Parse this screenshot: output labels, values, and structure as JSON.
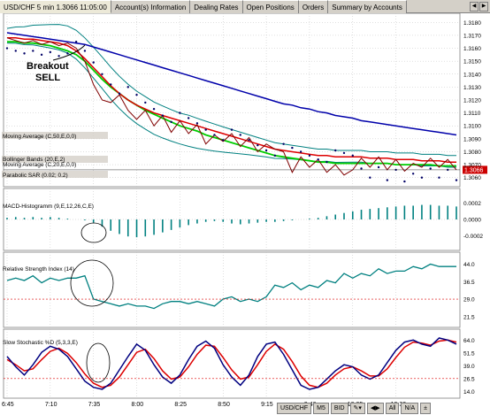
{
  "tabs": [
    {
      "label": "USD/CHF 5 min 1.3066 11:05:00",
      "active": true
    },
    {
      "label": "Account(s) Information",
      "active": false
    },
    {
      "label": "Dealing Rates",
      "active": false
    },
    {
      "label": "Open Positions",
      "active": false
    },
    {
      "label": "Orders",
      "active": false
    },
    {
      "label": "Summary by Accounts",
      "active": false
    }
  ],
  "annotation": {
    "line1": "Breakout",
    "line2": "SELL"
  },
  "price_panel": {
    "labels": [
      "Moving Average (C,50,E,0,0)",
      "Bollinger Bands (20,E,2)",
      "Moving Average (C,20,E,0,0)",
      "Parabolic SAR (0.02; 0.2)"
    ],
    "current_price": "1.3066",
    "yticks": [
      "1.3180",
      "1.3170",
      "1.3160",
      "1.3150",
      "1.3140",
      "1.3130",
      "1.3120",
      "1.3110",
      "1.3100",
      "1.3090",
      "1.3080",
      "1.3070",
      "1.3060"
    ]
  },
  "macd_panel": {
    "label": "MACD-Histogramm (9,E,12,26,C,E)",
    "yticks": [
      "0.0002",
      "0.0000",
      "-0.0002"
    ]
  },
  "rsi_panel": {
    "label": "Relative Strength Index (14)",
    "yticks": [
      "44.0",
      "36.5",
      "29.0",
      "21.5"
    ]
  },
  "stoch_panel": {
    "label": "Slow Stochastic %D (5,3,3,E)",
    "yticks": [
      "64.0",
      "51.5",
      "39.0",
      "26.5",
      "14.0"
    ]
  },
  "xticks": [
    "6:45",
    "7:10",
    "7:35",
    "8:00",
    "8:25",
    "8:50",
    "9:15",
    "9:40",
    "10:05",
    "10:30"
  ],
  "status": [
    "USD/CHF",
    "M5",
    "BID",
    "All",
    "N/A"
  ],
  "colors": {
    "ma50": "#0000aa",
    "ma20": "#00cc00",
    "bollinger": "#008080",
    "price": "#800000",
    "ema_red": "#dd0000",
    "sar": "#000066",
    "macd": "#008080",
    "rsi": "#008080",
    "stoch_k": "#000080",
    "stoch_d": "#dd0000"
  },
  "chart_data": [
    {
      "type": "line",
      "title": "USD/CHF 5 min 1.3066 11:05:00",
      "ylim": [
        1.3055,
        1.3185
      ],
      "x": [
        "6:45",
        "6:50",
        "6:55",
        "7:00",
        "7:05",
        "7:10",
        "7:15",
        "7:20",
        "7:25",
        "7:30",
        "7:35",
        "7:40",
        "7:45",
        "7:50",
        "7:55",
        "8:00",
        "8:05",
        "8:10",
        "8:15",
        "8:20",
        "8:25",
        "8:30",
        "8:35",
        "8:40",
        "8:45",
        "8:50",
        "8:55",
        "9:00",
        "9:05",
        "9:10",
        "9:15",
        "9:20",
        "9:25",
        "9:30",
        "9:35",
        "9:40",
        "9:45",
        "9:50",
        "9:55",
        "10:00",
        "10:05",
        "10:10",
        "10:15",
        "10:20",
        "10:25",
        "10:30",
        "10:35",
        "10:40",
        "10:45",
        "10:50",
        "10:55",
        "11:00",
        "11:05"
      ],
      "series": [
        {
          "name": "Moving Average (C,50,E,0,0)",
          "values": [
            1.3172,
            1.3171,
            1.317,
            1.3169,
            1.3168,
            1.3167,
            1.3166,
            1.3165,
            1.3164,
            1.3163,
            1.3161,
            1.3159,
            1.3157,
            1.3155,
            1.3153,
            1.3151,
            1.3149,
            1.3147,
            1.3145,
            1.3143,
            1.3141,
            1.3139,
            1.3137,
            1.3135,
            1.3133,
            1.3131,
            1.3129,
            1.3127,
            1.3125,
            1.3123,
            1.3121,
            1.3119,
            1.3117,
            1.3116,
            1.3114,
            1.3113,
            1.3111,
            1.311,
            1.3108,
            1.3107,
            1.3106,
            1.3104,
            1.3103,
            1.3102,
            1.3101,
            1.31,
            1.3099,
            1.3098,
            1.3097,
            1.3096,
            1.3095,
            1.3094,
            1.3093
          ]
        },
        {
          "name": "Bollinger Bands (20,E,2)",
          "values": [
            1.3168,
            1.3168,
            1.3167,
            1.3167,
            1.3166,
            1.3165,
            1.3164,
            1.3162,
            1.3158,
            1.3152,
            1.3145,
            1.3138,
            1.3131,
            1.3125,
            1.312,
            1.3116,
            1.3113,
            1.311,
            1.3108,
            1.3106,
            1.3104,
            1.3102,
            1.31,
            1.3098,
            1.3096,
            1.3094,
            1.3092,
            1.309,
            1.3088,
            1.3086,
            1.3084,
            1.3082,
            1.3081,
            1.308,
            1.3079,
            1.3078,
            1.3077,
            1.3077,
            1.3076,
            1.3076,
            1.3076,
            1.3076,
            1.3075,
            1.3075,
            1.3075,
            1.3074,
            1.3074,
            1.3074,
            1.3073,
            1.3073,
            1.3073,
            1.3072,
            1.3072
          ]
        },
        {
          "name": "Moving Average (C,20,E,0,0)",
          "values": [
            1.3165,
            1.3165,
            1.3164,
            1.3164,
            1.3163,
            1.3162,
            1.316,
            1.3158,
            1.3155,
            1.315,
            1.3143,
            1.3136,
            1.313,
            1.3125,
            1.312,
            1.3116,
            1.3112,
            1.3109,
            1.3106,
            1.3103,
            1.31,
            1.3098,
            1.3096,
            1.3093,
            1.3091,
            1.3089,
            1.3087,
            1.3085,
            1.3083,
            1.3081,
            1.3079,
            1.3077,
            1.3076,
            1.3075,
            1.3074,
            1.3073,
            1.3072,
            1.3072,
            1.3071,
            1.3071,
            1.3071,
            1.3071,
            1.3071,
            1.3071,
            1.3071,
            1.307,
            1.307,
            1.307,
            1.307,
            1.307,
            1.3069,
            1.3069,
            1.3069
          ]
        },
        {
          "name": "Price",
          "values": [
            1.3168,
            1.3166,
            1.3164,
            1.3166,
            1.3163,
            1.3165,
            1.3162,
            1.3164,
            1.316,
            1.315,
            1.3132,
            1.312,
            1.3118,
            1.3124,
            1.3112,
            1.3105,
            1.3112,
            1.31,
            1.3108,
            1.3095,
            1.3104,
            1.3094,
            1.3101,
            1.3086,
            1.3093,
            1.3088,
            1.3094,
            1.3084,
            1.3091,
            1.308,
            1.3086,
            1.3082,
            1.308,
            1.3064,
            1.3076,
            1.3068,
            1.3074,
            1.3064,
            1.307,
            1.3062,
            1.3066,
            1.3075,
            1.3068,
            1.3076,
            1.3066,
            1.3074,
            1.3065,
            1.3071,
            1.3068,
            1.3075,
            1.3068,
            1.3074,
            1.3066
          ]
        }
      ]
    },
    {
      "type": "bar",
      "title": "MACD-Histogramm (9,E,12,26,C,E)",
      "ylim": [
        -0.00035,
        0.00035
      ],
      "values": [
        2e-05,
        3e-05,
        2e-05,
        3e-05,
        2e-05,
        3e-05,
        2e-05,
        1e-05,
        0.0,
        -1e-05,
        -4e-05,
        -9e-05,
        -0.00014,
        -0.00018,
        -0.00021,
        -0.00022,
        -0.00021,
        -0.00019,
        -0.00016,
        -0.00013,
        -0.0001,
        -7e-05,
        -5e-05,
        -3e-05,
        -2e-05,
        -3e-05,
        -5e-05,
        -6e-05,
        -5e-05,
        -4e-05,
        -3e-05,
        -3e-05,
        -2e-05,
        -1e-05,
        0.0,
        1e-05,
        2e-05,
        4e-05,
        6e-05,
        8e-05,
        0.0001,
        0.00012,
        0.00013,
        0.00014,
        0.00015,
        0.00016,
        0.00017,
        0.00017,
        0.00018,
        0.00018,
        0.00017,
        0.00017,
        0.00016
      ]
    },
    {
      "type": "line",
      "title": "Relative Strength Index (14)",
      "ylim": [
        18,
        48
      ],
      "values": [
        37,
        38,
        37,
        39,
        36,
        38,
        37,
        38,
        38,
        39,
        29,
        28,
        27,
        26,
        27,
        26,
        26,
        25,
        27,
        28,
        28,
        27,
        28,
        27,
        26,
        29,
        30,
        28,
        29,
        28,
        30,
        35,
        34,
        36,
        33,
        35,
        34,
        37,
        36,
        40,
        38,
        40,
        39,
        42,
        40,
        41,
        41,
        43,
        42,
        44,
        43,
        43,
        43
      ]
    },
    {
      "type": "line",
      "title": "Slow Stochastic %D (5,3,3,E)",
      "ylim": [
        10,
        72
      ],
      "series": [
        {
          "name": "Slow Stochastic %D (5,3,3,E)",
          "values": [
            48,
            38,
            30,
            40,
            52,
            58,
            55,
            48,
            36,
            24,
            18,
            16,
            22,
            35,
            48,
            60,
            54,
            40,
            28,
            22,
            30,
            45,
            58,
            63,
            56,
            40,
            28,
            20,
            30,
            48,
            60,
            62,
            50,
            35,
            20,
            16,
            18,
            26,
            34,
            40,
            38,
            30,
            26,
            30,
            42,
            54,
            62,
            64,
            60,
            58,
            66,
            64,
            60
          ]
        },
        {
          "values": [
            45,
            40,
            34,
            36,
            45,
            53,
            56,
            51,
            42,
            31,
            22,
            18,
            20,
            28,
            40,
            52,
            55,
            46,
            34,
            26,
            28,
            38,
            50,
            59,
            58,
            47,
            35,
            26,
            28,
            40,
            53,
            60,
            55,
            43,
            29,
            20,
            18,
            22,
            30,
            36,
            38,
            34,
            29,
            29,
            36,
            47,
            57,
            62,
            61,
            59,
            63,
            64,
            62
          ]
        }
      ]
    }
  ]
}
